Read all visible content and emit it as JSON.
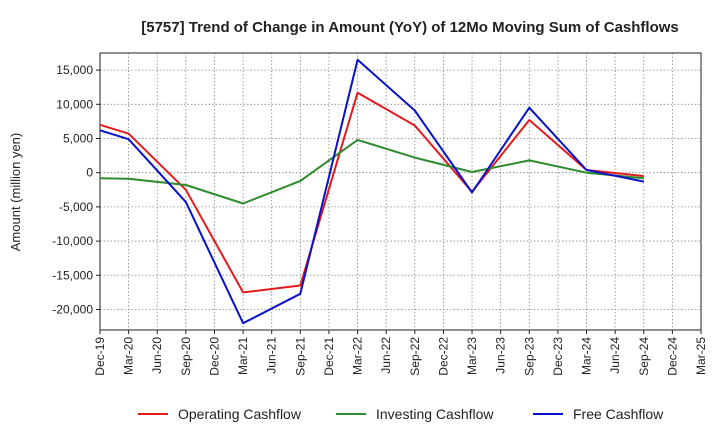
{
  "chart_data": {
    "type": "line",
    "title": "[5757]  Trend of Change in Amount (YoY) of 12Mo Moving Sum of Cashflows",
    "xlabel": "",
    "ylabel": "Amount (million yen)",
    "ylim": [
      -23000,
      17500
    ],
    "yticks": [
      15000,
      10000,
      5000,
      0,
      -5000,
      -10000,
      -15000,
      -20000
    ],
    "ytick_labels": [
      "15,000",
      "10,000",
      "5,000",
      "0",
      "-5,000",
      "-10,000",
      "-15,000",
      "-20,000"
    ],
    "categories": [
      "Dec-19",
      "Mar-20",
      "Jun-20",
      "Sep-20",
      "Dec-20",
      "Mar-21",
      "Jun-21",
      "Sep-21",
      "Dec-21",
      "Mar-22",
      "Jun-22",
      "Sep-22",
      "Dec-22",
      "Mar-23",
      "Jun-23",
      "Sep-23",
      "Dec-23",
      "Mar-24",
      "Jun-24",
      "Sep-24",
      "Dec-24",
      "Mar-25"
    ],
    "grid": true,
    "legend_position": "bottom",
    "series": [
      {
        "name": "Operating Cashflow",
        "color": "#e41a1c",
        "values": [
          7000,
          5700,
          null,
          -2500,
          null,
          -17500,
          null,
          -16500,
          null,
          11700,
          null,
          6900,
          null,
          -2800,
          null,
          7700,
          null,
          400,
          null,
          -500,
          null,
          null
        ]
      },
      {
        "name": "Investing Cashflow",
        "color": "#2e8b2e",
        "values": [
          -800,
          -900,
          null,
          -1800,
          null,
          -4500,
          null,
          -1200,
          null,
          4800,
          null,
          2200,
          null,
          100,
          null,
          1800,
          null,
          0,
          null,
          -800,
          null,
          null
        ]
      },
      {
        "name": "Free Cashflow",
        "color": "#0a12c8",
        "values": [
          6200,
          4900,
          null,
          -4300,
          null,
          -22000,
          null,
          -17700,
          null,
          16500,
          null,
          9100,
          null,
          -2900,
          null,
          9500,
          null,
          400,
          null,
          -1300,
          null,
          null
        ]
      }
    ]
  }
}
